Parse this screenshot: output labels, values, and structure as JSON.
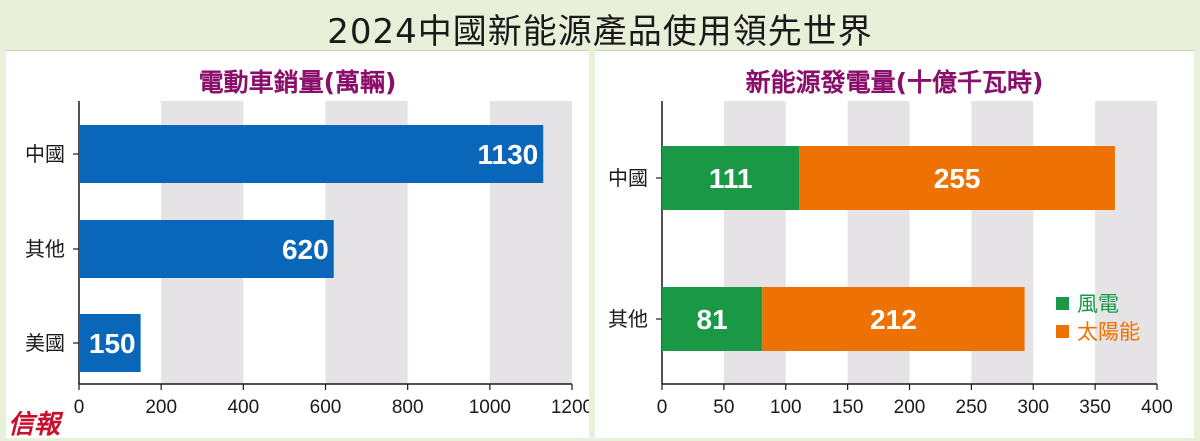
{
  "header": {
    "title": "2024中國新能源產品使用領先世界"
  },
  "logo": {
    "text": "信報"
  },
  "chart_data": [
    {
      "type": "bar",
      "orientation": "horizontal",
      "title": "電動車銷量(萬輛)",
      "categories": [
        "中國",
        "其他",
        "美國"
      ],
      "values": [
        1130,
        620,
        150
      ],
      "xlim": [
        0,
        1200
      ],
      "xticks": [
        "0",
        "200",
        "400",
        "600",
        "800",
        "1000",
        "1200"
      ],
      "color": "#0a66b8"
    },
    {
      "type": "bar",
      "orientation": "horizontal",
      "stacked": true,
      "title": "新能源發電量(十億千瓦時)",
      "categories": [
        "中國",
        "其他"
      ],
      "series": [
        {
          "name": "風電",
          "values": [
            111,
            81
          ],
          "color": "#1a9845"
        },
        {
          "name": "太陽能",
          "values": [
            255,
            212
          ],
          "color": "#ee7203"
        }
      ],
      "xlim": [
        0,
        400
      ],
      "xticks": [
        "0",
        "50",
        "100",
        "150",
        "200",
        "250",
        "300",
        "350",
        "400"
      ],
      "legend": "bottom-right"
    }
  ]
}
